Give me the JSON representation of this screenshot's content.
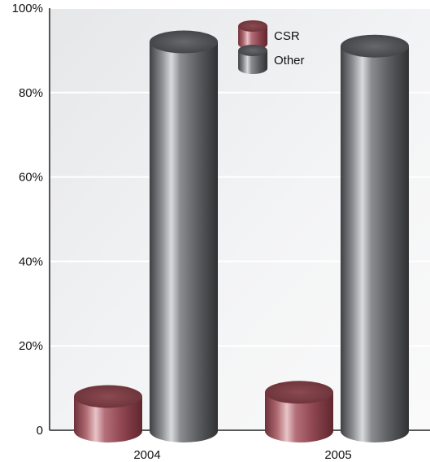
{
  "chart_data": {
    "type": "bar",
    "categories": [
      "2004",
      "2005"
    ],
    "series": [
      {
        "name": "CSR",
        "values": [
          8,
          9
        ]
      },
      {
        "name": "Other",
        "values": [
          92,
          91
        ]
      }
    ],
    "ylim": [
      0,
      100
    ],
    "yticks": [
      "0",
      "20%",
      "40%",
      "60%",
      "80%",
      "100%"
    ],
    "ytick_values": [
      0,
      20,
      40,
      60,
      80,
      100
    ],
    "legend_position": "top-center",
    "grid": true,
    "style": "3d-cylinder",
    "colors": {
      "CSR": "#9a4a52",
      "Other": "#6b6d70"
    }
  }
}
